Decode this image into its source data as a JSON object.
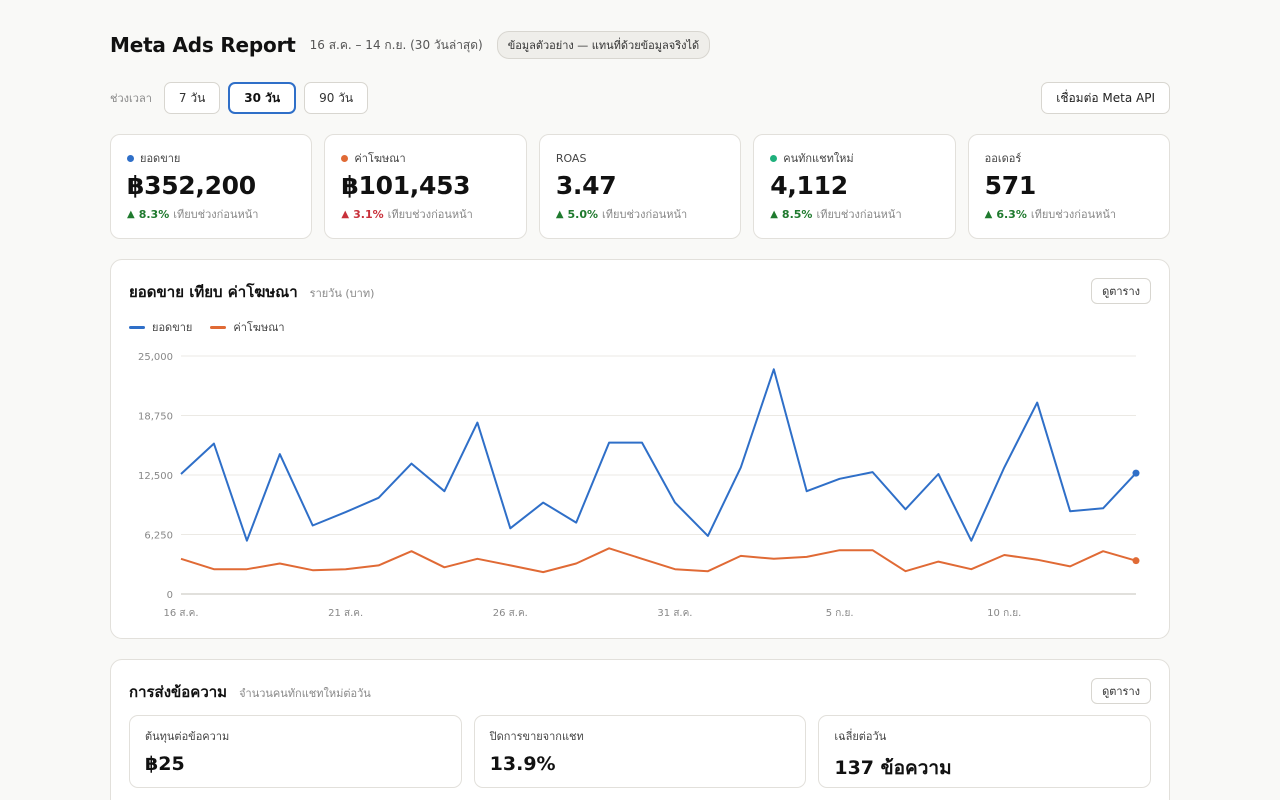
{
  "header": {
    "title": "Meta Ads Report",
    "date_range": "16 ส.ค. – 14 ก.ย. (30 วันล่าสุด)",
    "sample_badge": "ข้อมูลตัวอย่าง — แทนที่ด้วยข้อมูลจริงได้"
  },
  "range": {
    "label": "ช่วงเวลา",
    "options": [
      "7 วัน",
      "30 วัน",
      "90 วัน"
    ],
    "selected": "30 วัน",
    "connect_label": "เชื่อมต่อ Meta API"
  },
  "colors": {
    "sales": "#2f6fc8",
    "ad_spend": "#e06a35",
    "new_chats": "#1fb07c",
    "up": "#1f7a2e",
    "down": "#c8303a"
  },
  "kpis": [
    {
      "label": "ยอดขาย",
      "value": "฿352,200",
      "delta": "8.3%",
      "direction": "up",
      "compare": "เทียบช่วงก่อนหน้า"
    },
    {
      "label": "ค่าโฆษณา",
      "value": "฿101,453",
      "delta": "3.1%",
      "direction": "up-negative",
      "compare": "เทียบช่วงก่อนหน้า"
    },
    {
      "label": "ROAS",
      "value": "3.47",
      "delta": "5.0%",
      "direction": "up",
      "compare": "เทียบช่วงก่อนหน้า"
    },
    {
      "label": "คนทักแชทใหม่",
      "value": "4,112",
      "delta": "8.5%",
      "direction": "up",
      "compare": "เทียบช่วงก่อนหน้า"
    },
    {
      "label": "ออเดอร์",
      "value": "571",
      "delta": "6.3%",
      "direction": "up",
      "compare": "เทียบช่วงก่อนหน้า"
    }
  ],
  "sales_chart": {
    "title": "ยอดขาย เทียบ ค่าโฆษณา",
    "subtitle": "รายวัน (บาท)",
    "table_button": "ดูตาราง"
  },
  "chart_data": {
    "type": "line",
    "x": [
      "16 ส.ค.",
      "17 ส.ค.",
      "18 ส.ค.",
      "19 ส.ค.",
      "20 ส.ค.",
      "21 ส.ค.",
      "22 ส.ค.",
      "23 ส.ค.",
      "24 ส.ค.",
      "25 ส.ค.",
      "26 ส.ค.",
      "27 ส.ค.",
      "28 ส.ค.",
      "29 ส.ค.",
      "30 ส.ค.",
      "31 ส.ค.",
      "1 ก.ย.",
      "2 ก.ย.",
      "3 ก.ย.",
      "4 ก.ย.",
      "5 ก.ย.",
      "6 ก.ย.",
      "7 ก.ย.",
      "8 ก.ย.",
      "9 ก.ย.",
      "10 ก.ย.",
      "11 ก.ย.",
      "12 ก.ย.",
      "13 ก.ย.",
      "14 ก.ย."
    ],
    "x_tick_labels": [
      "16 ส.ค.",
      "21 ส.ค.",
      "26 ส.ค.",
      "31 ส.ค.",
      "5 ก.ย.",
      "10 ก.ย."
    ],
    "y_ticks": [
      "0",
      "6,250",
      "12,500",
      "18,750",
      "25,000"
    ],
    "ylim": [
      0,
      25000
    ],
    "grid": true,
    "legend": "top-left",
    "series": [
      {
        "name": "ยอดขาย",
        "color": "#2f6fc8",
        "values": [
          12600,
          15800,
          5600,
          14700,
          7200,
          8600,
          10100,
          13700,
          10800,
          18000,
          6900,
          9600,
          7500,
          15900,
          15900,
          9600,
          6100,
          13300,
          23600,
          10800,
          12100,
          12800,
          8900,
          12600,
          5600,
          13300,
          20100,
          8700,
          9000,
          12700
        ]
      },
      {
        "name": "ค่าโฆษณา",
        "color": "#e06a35",
        "values": [
          3700,
          2600,
          2600,
          3200,
          2500,
          2600,
          3000,
          4500,
          2800,
          3700,
          3000,
          2300,
          3200,
          4800,
          3700,
          2600,
          2400,
          4000,
          3700,
          3900,
          4600,
          4600,
          2400,
          3400,
          2600,
          4100,
          3600,
          2900,
          4500,
          3500
        ]
      }
    ]
  },
  "messaging": {
    "title": "การส่งข้อความ",
    "subtitle": "จำนวนคนทักแชทใหม่ต่อวัน",
    "table_button": "ดูตาราง",
    "stats": [
      {
        "label": "ต้นทุนต่อข้อความ",
        "value": "฿25"
      },
      {
        "label": "ปิดการขายจากแชท",
        "value": "13.9%"
      },
      {
        "label": "เฉลี่ยต่อวัน",
        "value": "137 ข้อความ"
      }
    ]
  }
}
